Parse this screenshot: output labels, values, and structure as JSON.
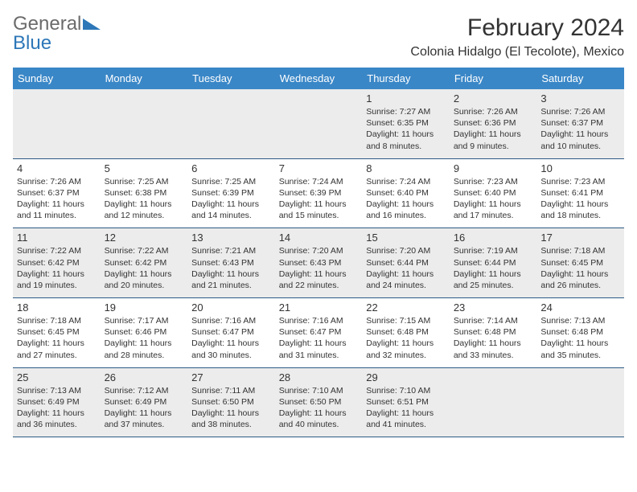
{
  "brand": {
    "name_part1": "General",
    "name_part2": "Blue"
  },
  "title": "February 2024",
  "location": "Colonia Hidalgo (El Tecolote), Mexico",
  "colors": {
    "header_bg": "#3a87c7",
    "row_border": "#2d5a85",
    "alt_row_bg": "#ececec",
    "text": "#333333",
    "brand_gray": "#6b6b6b",
    "brand_blue": "#2d77b8"
  },
  "day_headers": [
    "Sunday",
    "Monday",
    "Tuesday",
    "Wednesday",
    "Thursday",
    "Friday",
    "Saturday"
  ],
  "weeks": [
    [
      null,
      null,
      null,
      null,
      {
        "n": "1",
        "sr": "7:27 AM",
        "ss": "6:35 PM",
        "dl": "11 hours and 8 minutes."
      },
      {
        "n": "2",
        "sr": "7:26 AM",
        "ss": "6:36 PM",
        "dl": "11 hours and 9 minutes."
      },
      {
        "n": "3",
        "sr": "7:26 AM",
        "ss": "6:37 PM",
        "dl": "11 hours and 10 minutes."
      }
    ],
    [
      {
        "n": "4",
        "sr": "7:26 AM",
        "ss": "6:37 PM",
        "dl": "11 hours and 11 minutes."
      },
      {
        "n": "5",
        "sr": "7:25 AM",
        "ss": "6:38 PM",
        "dl": "11 hours and 12 minutes."
      },
      {
        "n": "6",
        "sr": "7:25 AM",
        "ss": "6:39 PM",
        "dl": "11 hours and 14 minutes."
      },
      {
        "n": "7",
        "sr": "7:24 AM",
        "ss": "6:39 PM",
        "dl": "11 hours and 15 minutes."
      },
      {
        "n": "8",
        "sr": "7:24 AM",
        "ss": "6:40 PM",
        "dl": "11 hours and 16 minutes."
      },
      {
        "n": "9",
        "sr": "7:23 AM",
        "ss": "6:40 PM",
        "dl": "11 hours and 17 minutes."
      },
      {
        "n": "10",
        "sr": "7:23 AM",
        "ss": "6:41 PM",
        "dl": "11 hours and 18 minutes."
      }
    ],
    [
      {
        "n": "11",
        "sr": "7:22 AM",
        "ss": "6:42 PM",
        "dl": "11 hours and 19 minutes."
      },
      {
        "n": "12",
        "sr": "7:22 AM",
        "ss": "6:42 PM",
        "dl": "11 hours and 20 minutes."
      },
      {
        "n": "13",
        "sr": "7:21 AM",
        "ss": "6:43 PM",
        "dl": "11 hours and 21 minutes."
      },
      {
        "n": "14",
        "sr": "7:20 AM",
        "ss": "6:43 PM",
        "dl": "11 hours and 22 minutes."
      },
      {
        "n": "15",
        "sr": "7:20 AM",
        "ss": "6:44 PM",
        "dl": "11 hours and 24 minutes."
      },
      {
        "n": "16",
        "sr": "7:19 AM",
        "ss": "6:44 PM",
        "dl": "11 hours and 25 minutes."
      },
      {
        "n": "17",
        "sr": "7:18 AM",
        "ss": "6:45 PM",
        "dl": "11 hours and 26 minutes."
      }
    ],
    [
      {
        "n": "18",
        "sr": "7:18 AM",
        "ss": "6:45 PM",
        "dl": "11 hours and 27 minutes."
      },
      {
        "n": "19",
        "sr": "7:17 AM",
        "ss": "6:46 PM",
        "dl": "11 hours and 28 minutes."
      },
      {
        "n": "20",
        "sr": "7:16 AM",
        "ss": "6:47 PM",
        "dl": "11 hours and 30 minutes."
      },
      {
        "n": "21",
        "sr": "7:16 AM",
        "ss": "6:47 PM",
        "dl": "11 hours and 31 minutes."
      },
      {
        "n": "22",
        "sr": "7:15 AM",
        "ss": "6:48 PM",
        "dl": "11 hours and 32 minutes."
      },
      {
        "n": "23",
        "sr": "7:14 AM",
        "ss": "6:48 PM",
        "dl": "11 hours and 33 minutes."
      },
      {
        "n": "24",
        "sr": "7:13 AM",
        "ss": "6:48 PM",
        "dl": "11 hours and 35 minutes."
      }
    ],
    [
      {
        "n": "25",
        "sr": "7:13 AM",
        "ss": "6:49 PM",
        "dl": "11 hours and 36 minutes."
      },
      {
        "n": "26",
        "sr": "7:12 AM",
        "ss": "6:49 PM",
        "dl": "11 hours and 37 minutes."
      },
      {
        "n": "27",
        "sr": "7:11 AM",
        "ss": "6:50 PM",
        "dl": "11 hours and 38 minutes."
      },
      {
        "n": "28",
        "sr": "7:10 AM",
        "ss": "6:50 PM",
        "dl": "11 hours and 40 minutes."
      },
      {
        "n": "29",
        "sr": "7:10 AM",
        "ss": "6:51 PM",
        "dl": "11 hours and 41 minutes."
      },
      null,
      null
    ]
  ],
  "labels": {
    "sunrise": "Sunrise:",
    "sunset": "Sunset:",
    "daylight": "Daylight:"
  }
}
